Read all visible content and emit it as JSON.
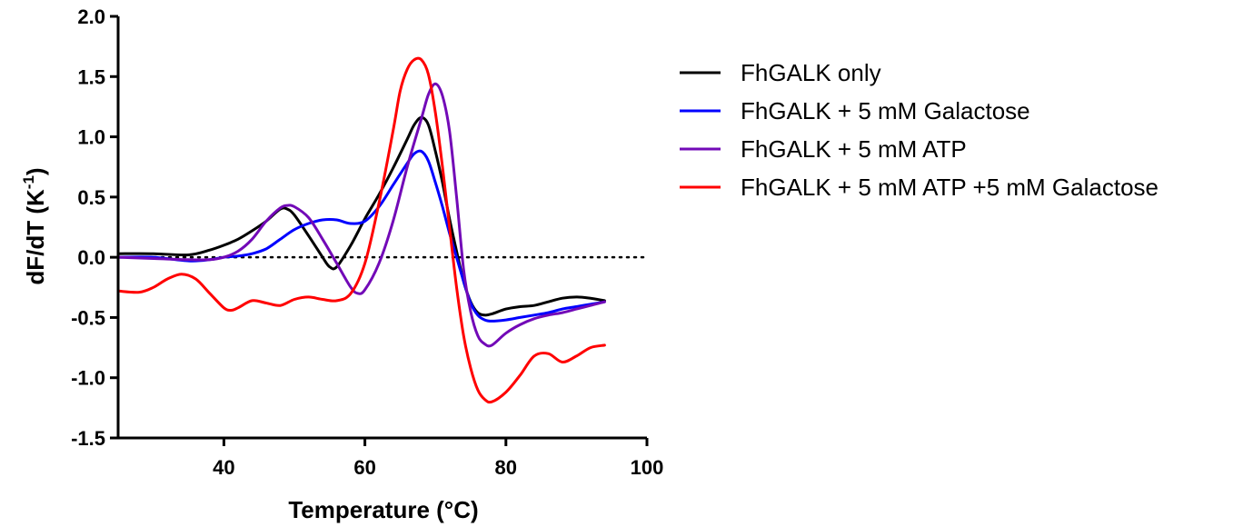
{
  "chart_data": {
    "type": "line",
    "xlabel": "Temperature (°C)",
    "ylabel": {
      "main": "dF/dT (K",
      "superscript": "-1",
      "close": ")"
    },
    "xlim": [
      25,
      100
    ],
    "ylim": [
      -1.5,
      2.0
    ],
    "xticks": [
      40,
      60,
      80,
      100
    ],
    "yticks": [
      -1.5,
      -1.0,
      -0.5,
      0.0,
      0.5,
      1.0,
      1.5,
      2.0
    ],
    "xtick_labels": [
      "40",
      "60",
      "80",
      "100"
    ],
    "ytick_labels": [
      "-1.5",
      "-1.0",
      "-0.5",
      "0.0",
      "0.5",
      "1.0",
      "1.5",
      "2.0"
    ],
    "grid": false,
    "legend_position": "right",
    "reference_line": {
      "y": 0,
      "style": "dotted",
      "x_range": [
        25,
        100
      ]
    },
    "series": [
      {
        "name": "FhGALK only",
        "color": "#000000",
        "x": [
          25,
          30,
          35,
          38,
          40,
          42,
          44,
          46,
          48,
          49,
          50,
          52,
          54,
          55,
          56,
          58,
          60,
          62,
          64,
          66,
          67,
          68,
          69,
          70,
          71,
          72,
          73,
          74,
          75,
          76,
          77,
          78,
          80,
          82,
          84,
          86,
          88,
          90,
          92,
          94
        ],
        "y": [
          0.03,
          0.03,
          0.02,
          0.06,
          0.1,
          0.15,
          0.22,
          0.3,
          0.4,
          0.4,
          0.35,
          0.18,
          0.0,
          -0.08,
          -0.08,
          0.1,
          0.32,
          0.52,
          0.74,
          0.98,
          1.1,
          1.16,
          1.1,
          0.88,
          0.62,
          0.32,
          0.05,
          -0.2,
          -0.37,
          -0.46,
          -0.48,
          -0.47,
          -0.43,
          -0.41,
          -0.4,
          -0.37,
          -0.34,
          -0.33,
          -0.34,
          -0.36
        ]
      },
      {
        "name": "FhGALK + 5 mM Galactose",
        "color": "#0000ff",
        "x": [
          25,
          30,
          35,
          38,
          40,
          42,
          44,
          46,
          48,
          50,
          52,
          54,
          56,
          58,
          60,
          62,
          64,
          66,
          67,
          68,
          69,
          70,
          71,
          72,
          73,
          74,
          75,
          76,
          77,
          78,
          80,
          82,
          84,
          86,
          88,
          90,
          92,
          94
        ],
        "y": [
          0.0,
          0.0,
          -0.03,
          -0.02,
          0.0,
          0.01,
          0.03,
          0.07,
          0.15,
          0.23,
          0.28,
          0.31,
          0.31,
          0.28,
          0.3,
          0.42,
          0.6,
          0.78,
          0.86,
          0.88,
          0.8,
          0.62,
          0.42,
          0.2,
          0.0,
          -0.2,
          -0.38,
          -0.48,
          -0.52,
          -0.53,
          -0.52,
          -0.5,
          -0.48,
          -0.46,
          -0.43,
          -0.41,
          -0.39,
          -0.37
        ]
      },
      {
        "name": "FhGALK + 5 mM ATP",
        "color": "#7209b7",
        "x": [
          25,
          30,
          35,
          38,
          40,
          42,
          44,
          46,
          48,
          49,
          50,
          52,
          54,
          56,
          58,
          59,
          60,
          62,
          64,
          66,
          68,
          69,
          70,
          71,
          72,
          73,
          74,
          75,
          76,
          77,
          78,
          80,
          82,
          84,
          86,
          88,
          90,
          92,
          94
        ],
        "y": [
          0.0,
          -0.01,
          -0.02,
          -0.02,
          0.0,
          0.05,
          0.15,
          0.3,
          0.41,
          0.43,
          0.42,
          0.33,
          0.15,
          -0.05,
          -0.25,
          -0.3,
          -0.27,
          -0.05,
          0.3,
          0.75,
          1.15,
          1.35,
          1.44,
          1.34,
          1.05,
          0.5,
          -0.1,
          -0.45,
          -0.65,
          -0.72,
          -0.73,
          -0.63,
          -0.56,
          -0.51,
          -0.48,
          -0.46,
          -0.43,
          -0.4,
          -0.37
        ]
      },
      {
        "name": "FhGALK + 5 mM ATP +5 mM Galactose",
        "color": "#ff0000",
        "x": [
          25,
          28,
          30,
          32,
          34,
          36,
          38,
          40,
          41,
          42,
          44,
          46,
          48,
          50,
          52,
          54,
          56,
          58,
          60,
          62,
          64,
          65,
          66,
          67,
          68,
          69,
          70,
          71,
          72,
          73,
          74,
          75,
          76,
          77,
          78,
          80,
          82,
          84,
          86,
          88,
          90,
          92,
          94
        ],
        "y": [
          -0.28,
          -0.29,
          -0.25,
          -0.18,
          -0.14,
          -0.18,
          -0.3,
          -0.42,
          -0.44,
          -0.42,
          -0.36,
          -0.38,
          -0.4,
          -0.35,
          -0.33,
          -0.35,
          -0.36,
          -0.3,
          -0.05,
          0.45,
          1.05,
          1.38,
          1.56,
          1.64,
          1.64,
          1.52,
          1.2,
          0.75,
          0.25,
          -0.25,
          -0.65,
          -0.92,
          -1.1,
          -1.18,
          -1.2,
          -1.12,
          -0.98,
          -0.82,
          -0.8,
          -0.87,
          -0.82,
          -0.75,
          -0.73
        ]
      }
    ]
  }
}
